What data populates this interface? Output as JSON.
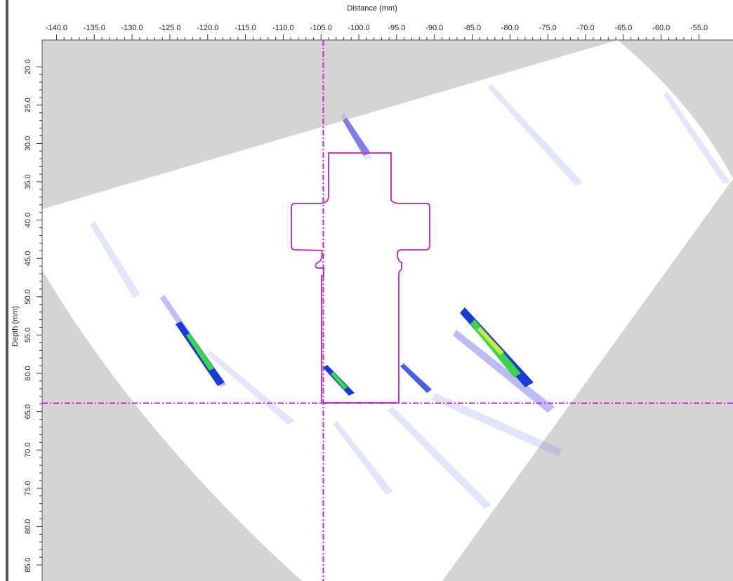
{
  "chart_data": {
    "type": "scan",
    "xlabel": "Distance  (mm)",
    "ylabel": "Depth (mm)",
    "xlim": [
      -141.9,
      -50.5
    ],
    "ylim": [
      16.5,
      87.1
    ],
    "xticks": [
      {
        "value": -140,
        "label": "-140.0"
      },
      {
        "value": -135,
        "label": "-135.0"
      },
      {
        "value": -130,
        "label": "-130.0"
      },
      {
        "value": -125,
        "label": "-125.0"
      },
      {
        "value": -120,
        "label": "-120.0"
      },
      {
        "value": -115,
        "label": "-115.0"
      },
      {
        "value": -110,
        "label": "-110.0"
      },
      {
        "value": -105,
        "label": "-105.0"
      },
      {
        "value": -100,
        "label": "-100.0"
      },
      {
        "value": -95,
        "label": "-95.0"
      },
      {
        "value": -90,
        "label": "-90.0"
      },
      {
        "value": -85,
        "label": "-85.0"
      },
      {
        "value": -80,
        "label": "-80.0"
      },
      {
        "value": -75,
        "label": "-75.0"
      },
      {
        "value": -70,
        "label": "-70.0"
      },
      {
        "value": -65,
        "label": "-65.0"
      },
      {
        "value": -60,
        "label": "-60.0"
      },
      {
        "value": -55,
        "label": "-55.0"
      }
    ],
    "yticks": [
      {
        "value": 20,
        "label": "20.0"
      },
      {
        "value": 25,
        "label": "25.0"
      },
      {
        "value": 30,
        "label": "30.0"
      },
      {
        "value": 35,
        "label": "35.0"
      },
      {
        "value": 40,
        "label": "40.0"
      },
      {
        "value": 45,
        "label": "45.0"
      },
      {
        "value": 50,
        "label": "50.0"
      },
      {
        "value": 55,
        "label": "55.0"
      },
      {
        "value": 60,
        "label": "60.0"
      },
      {
        "value": 65,
        "label": "65.0"
      },
      {
        "value": 70,
        "label": "70.0"
      },
      {
        "value": 75,
        "label": "75.0"
      },
      {
        "value": 80,
        "label": "80.0"
      },
      {
        "value": 85,
        "label": "85.0"
      }
    ],
    "cursor_x": -104.7,
    "cursor_y": 63.9,
    "cursor_color": "#cc22cc"
  }
}
